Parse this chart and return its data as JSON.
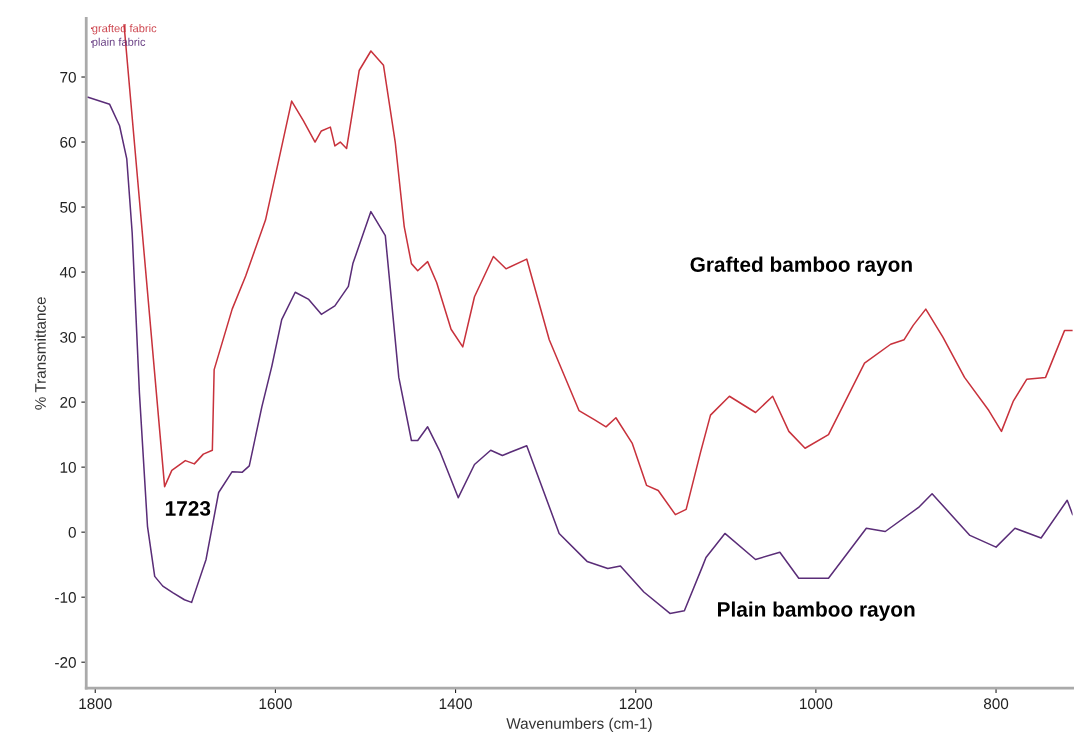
{
  "chart_data": {
    "type": "line",
    "xlabel": "Wavenumbers (cm-1)",
    "ylabel": "% Transmittance",
    "xlim": [
      1810,
      715
    ],
    "ylim": [
      -24,
      79
    ],
    "xticks": [
      1800,
      1600,
      1400,
      1200,
      1000,
      800
    ],
    "yticks": [
      -20,
      -10,
      0,
      10,
      20,
      30,
      40,
      50,
      60,
      70
    ],
    "grid": false,
    "legend": "top left",
    "marker": "none",
    "line_style": "solid",
    "series": [
      {
        "name": "grafted fabric",
        "color": "#c8323c",
        "x": [
          1768,
          1723,
          1715,
          1700,
          1690,
          1680,
          1670,
          1668,
          1648,
          1633,
          1611,
          1596,
          1582,
          1569,
          1556,
          1549,
          1539,
          1534,
          1528,
          1521,
          1507,
          1494,
          1480,
          1467,
          1457,
          1449,
          1442,
          1431,
          1421,
          1405,
          1392,
          1379,
          1358,
          1344,
          1321,
          1296,
          1263,
          1246,
          1233,
          1222,
          1204,
          1188,
          1175,
          1156,
          1144,
          1128,
          1117,
          1096,
          1067,
          1048,
          1030,
          1012,
          986,
          946,
          917,
          902,
          892,
          878,
          859,
          835,
          808,
          794,
          781,
          766,
          745,
          724,
          715
        ],
        "values": [
          78,
          7.0,
          9.5,
          11,
          10.5,
          12,
          12.6,
          25,
          34.3,
          39.4,
          48,
          57.4,
          66.3,
          63.3,
          60,
          61.7,
          62.3,
          59.4,
          60,
          59,
          71,
          74,
          71.8,
          60,
          47,
          41.3,
          40.2,
          41.6,
          38.4,
          31.2,
          28.5,
          36.2,
          42.4,
          40.5,
          42,
          29.6,
          18.7,
          17.3,
          16.2,
          17.6,
          13.7,
          7.2,
          6.4,
          2.7,
          3.5,
          12.3,
          18,
          20.9,
          18.4,
          20.9,
          15.5,
          12.9,
          15,
          26,
          28.9,
          29.6,
          31.8,
          34.3,
          30,
          23.8,
          18.7,
          15.5,
          20.1,
          23.5,
          23.8,
          31,
          31
        ]
      },
      {
        "name": "plain fabric",
        "color": "#5a2d78",
        "x": [
          1808,
          1784,
          1773,
          1765,
          1759,
          1754,
          1751,
          1742,
          1734,
          1725,
          1714,
          1701,
          1693,
          1677,
          1663,
          1648,
          1637,
          1629,
          1615,
          1604,
          1593,
          1578,
          1563,
          1549,
          1534,
          1519,
          1514,
          1494,
          1478,
          1463,
          1449,
          1442,
          1431,
          1417,
          1397,
          1379,
          1361,
          1348,
          1321,
          1285,
          1254,
          1231,
          1217,
          1191,
          1162,
          1146,
          1126,
          1122,
          1101,
          1067,
          1040,
          1019,
          986,
          944,
          923,
          886,
          871,
          829,
          800,
          779,
          750,
          721,
          715
        ],
        "values": [
          66.9,
          65.8,
          62.5,
          57.4,
          46,
          30.8,
          21.5,
          0.9,
          -6.8,
          -8.3,
          -9.3,
          -10.4,
          -10.8,
          -4.2,
          6.1,
          9.3,
          9.2,
          10.2,
          19.3,
          25.5,
          32.7,
          36.9,
          35.8,
          33.5,
          34.8,
          37.8,
          41.3,
          49.3,
          45.6,
          23.8,
          14.1,
          14.1,
          16.2,
          12.3,
          5.3,
          10.4,
          12.6,
          11.8,
          13.3,
          -0.2,
          -4.5,
          -5.6,
          -5.2,
          -9.2,
          -12.5,
          -12.1,
          -5.3,
          -3.9,
          -0.2,
          -4.2,
          -3.1,
          -7.1,
          -7.1,
          0.6,
          0.1,
          3.8,
          5.9,
          -0.5,
          -2.3,
          0.6,
          -0.9,
          4.9,
          2.7
        ]
      }
    ],
    "annotations": [
      {
        "text": "1723",
        "x": 1723,
        "y": 7.0
      },
      "Grafted bamboo rayon",
      "Plain bamboo rayon"
    ]
  }
}
